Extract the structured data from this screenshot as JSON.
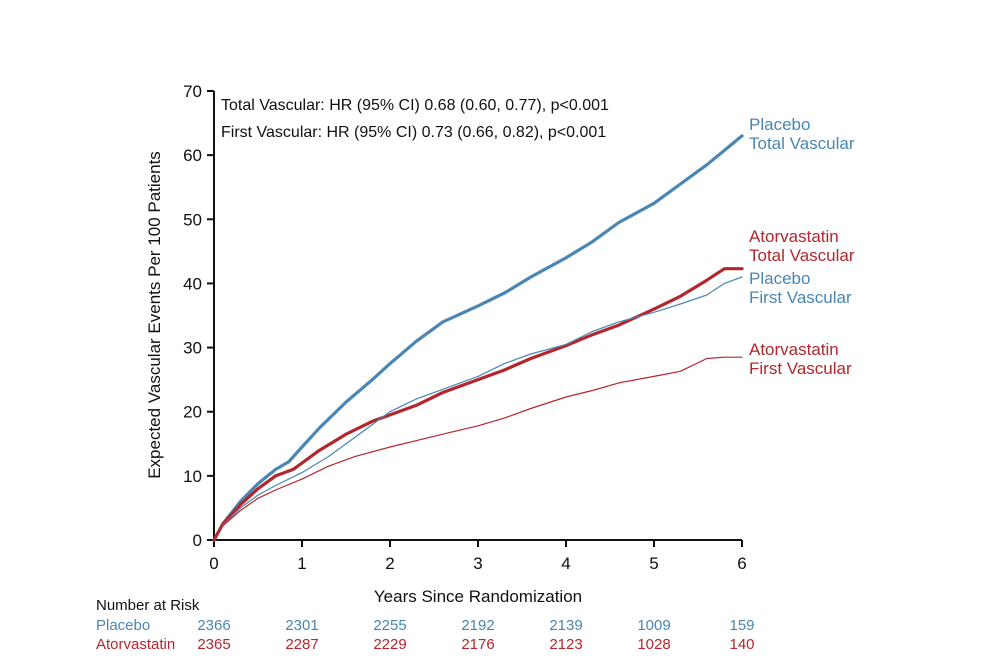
{
  "chart_data": {
    "type": "line",
    "xlabel": "Years Since Randomization",
    "ylabel": "Expected Vascular Events Per 100 Patients",
    "xlim": [
      0,
      6
    ],
    "ylim": [
      0,
      70
    ],
    "xticks": [
      0,
      1,
      2,
      3,
      4,
      5,
      6
    ],
    "yticks": [
      0,
      10,
      20,
      30,
      40,
      50,
      60,
      70
    ],
    "grid": false,
    "annotations": [
      "Total Vascular: HR (95% CI) 0.68 (0.60, 0.77), p<0.001",
      "First Vascular: HR (95% CI) 0.73 (0.66, 0.82), p<0.001"
    ],
    "series": [
      {
        "label_lines": [
          "Placebo",
          "Total Vascular"
        ],
        "color": "#4a86b4",
        "style": "thick",
        "x": [
          0,
          0.1,
          0.3,
          0.5,
          0.7,
          0.85,
          1.0,
          1.2,
          1.5,
          1.8,
          2.0,
          2.3,
          2.6,
          3.0,
          3.3,
          3.6,
          4.0,
          4.3,
          4.6,
          5.0,
          5.3,
          5.6,
          6.0
        ],
        "y": [
          0,
          2.5,
          6,
          8.8,
          11,
          12.2,
          14.5,
          17.5,
          21.5,
          25,
          27.5,
          31,
          34,
          36.5,
          38.5,
          41,
          44,
          46.5,
          49.5,
          52.5,
          55.5,
          58.5,
          63
        ]
      },
      {
        "label_lines": [
          "Atorvastatin",
          "Total Vascular"
        ],
        "color": "#b3272c",
        "style": "thick",
        "x": [
          0,
          0.1,
          0.3,
          0.5,
          0.7,
          0.9,
          1.0,
          1.2,
          1.5,
          1.8,
          2.0,
          2.3,
          2.6,
          3.0,
          3.3,
          3.6,
          4.0,
          4.3,
          4.6,
          5.0,
          5.3,
          5.6,
          5.8,
          6.0
        ],
        "y": [
          0,
          2.5,
          5.5,
          8,
          10,
          11,
          12,
          14,
          16.5,
          18.5,
          19.5,
          21,
          23,
          25,
          26.5,
          28.3,
          30.3,
          32,
          33.5,
          36,
          38,
          40.5,
          42.3,
          42.3
        ]
      },
      {
        "label_lines": [
          "Placebo",
          "First Vascular"
        ],
        "color": "#4a86b4",
        "style": "thin",
        "x": [
          0,
          0.1,
          0.3,
          0.5,
          0.7,
          1.0,
          1.3,
          1.6,
          2.0,
          2.3,
          2.6,
          3.0,
          3.3,
          3.6,
          4.0,
          4.3,
          4.6,
          5.0,
          5.3,
          5.6,
          5.8,
          6.0
        ],
        "y": [
          0,
          2.3,
          5,
          7,
          8.5,
          10.5,
          13,
          16,
          20,
          22,
          23.5,
          25.5,
          27.5,
          29,
          30.5,
          32.5,
          34,
          35.5,
          36.8,
          38.2,
          40,
          41
        ]
      },
      {
        "label_lines": [
          "Atorvastatin",
          "First Vascular"
        ],
        "color": "#b3272c",
        "style": "thin",
        "x": [
          0,
          0.1,
          0.3,
          0.5,
          0.7,
          1.0,
          1.3,
          1.6,
          2.0,
          2.3,
          2.6,
          3.0,
          3.3,
          3.6,
          4.0,
          4.3,
          4.6,
          5.0,
          5.3,
          5.6,
          5.8,
          6.0
        ],
        "y": [
          0,
          2.2,
          4.6,
          6.5,
          7.8,
          9.5,
          11.5,
          13,
          14.5,
          15.5,
          16.5,
          17.8,
          19,
          20.5,
          22.3,
          23.3,
          24.5,
          25.5,
          26.3,
          28.3,
          28.5,
          28.5
        ]
      }
    ],
    "risk_table": {
      "title": "Number at Risk",
      "x": [
        0,
        1,
        2,
        3,
        4,
        5,
        6
      ],
      "rows": [
        {
          "name": "Placebo",
          "color": "#4a86b4",
          "values": [
            "2366",
            "2301",
            "2255",
            "2192",
            "2139",
            "1009",
            "159"
          ]
        },
        {
          "name": "Atorvastatin",
          "color": "#b3272c",
          "values": [
            "2365",
            "2287",
            "2229",
            "2176",
            "2123",
            "1028",
            "140"
          ]
        }
      ]
    }
  }
}
